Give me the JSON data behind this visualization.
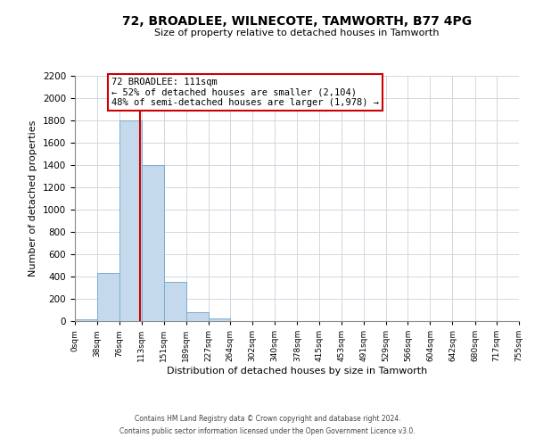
{
  "title": "72, BROADLEE, WILNECOTE, TAMWORTH, B77 4PG",
  "subtitle": "Size of property relative to detached houses in Tamworth",
  "xlabel": "Distribution of detached houses by size in Tamworth",
  "ylabel": "Number of detached properties",
  "bar_color": "#c5d9ed",
  "bar_edge_color": "#7aacce",
  "bin_edges": [
    0,
    38,
    76,
    113,
    151,
    189,
    227,
    264,
    302,
    340,
    378,
    415,
    453,
    491,
    529,
    566,
    604,
    642,
    680,
    717,
    755
  ],
  "bar_heights": [
    20,
    430,
    1800,
    1400,
    350,
    80,
    25,
    0,
    0,
    0,
    0,
    0,
    0,
    0,
    0,
    0,
    0,
    0,
    0,
    0
  ],
  "tick_labels": [
    "0sqm",
    "38sqm",
    "76sqm",
    "113sqm",
    "151sqm",
    "189sqm",
    "227sqm",
    "264sqm",
    "302sqm",
    "340sqm",
    "378sqm",
    "415sqm",
    "453sqm",
    "491sqm",
    "529sqm",
    "566sqm",
    "604sqm",
    "642sqm",
    "680sqm",
    "717sqm",
    "755sqm"
  ],
  "ylim": [
    0,
    2200
  ],
  "yticks": [
    0,
    200,
    400,
    600,
    800,
    1000,
    1200,
    1400,
    1600,
    1800,
    2000,
    2200
  ],
  "property_line_x": 111,
  "property_line_color": "#cc0000",
  "annotation_text": "72 BROADLEE: 111sqm\n← 52% of detached houses are smaller (2,104)\n48% of semi-detached houses are larger (1,978) →",
  "annotation_box_color": "#ffffff",
  "annotation_box_edge": "#cc0000",
  "footer_line1": "Contains HM Land Registry data © Crown copyright and database right 2024.",
  "footer_line2": "Contains public sector information licensed under the Open Government Licence v3.0.",
  "background_color": "#ffffff",
  "grid_color": "#d0d8e0"
}
